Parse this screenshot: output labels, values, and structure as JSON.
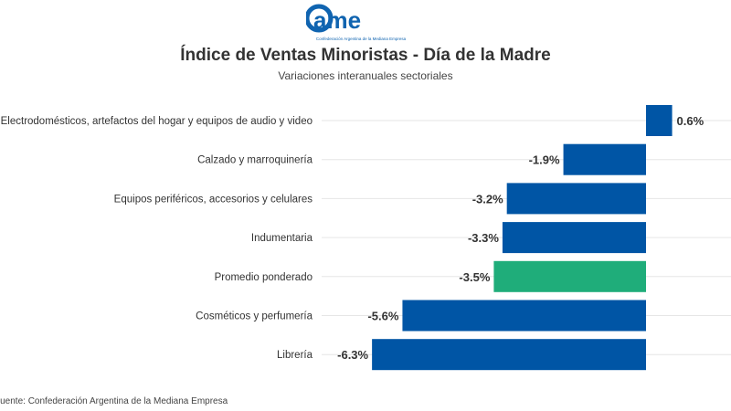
{
  "logo": {
    "text": "came",
    "tagline": "Confederación Argentina de la Mediana Empresa"
  },
  "chart_data": {
    "type": "bar",
    "orientation": "horizontal",
    "title": "Índice de Ventas Minoristas - Día de la Madre",
    "subtitle": "Variaciones interanuales sectoriales",
    "categories": [
      "Electrodomésticos, artefactos del hogar y equipos de audio y video",
      "Calzado y marroquinería",
      "Equipos periféricos, accesorios y celulares",
      "Indumentaria",
      "Promedio ponderado",
      "Cosméticos y perfumería",
      "Librería"
    ],
    "values": [
      0.6,
      -1.9,
      -3.2,
      -3.3,
      -3.5,
      -5.6,
      -6.3
    ],
    "labels": [
      "0.6%",
      "-1.9%",
      "-3.2%",
      "-3.3%",
      "-3.5%",
      "-5.6%",
      "-6.3%"
    ],
    "colors": [
      "#0055a5",
      "#0055a5",
      "#0055a5",
      "#0055a5",
      "#1fad7a",
      "#0055a5",
      "#0055a5"
    ],
    "grid": true
  },
  "source": "Fuente: Confederación Argentina de la Mediana Empresa"
}
